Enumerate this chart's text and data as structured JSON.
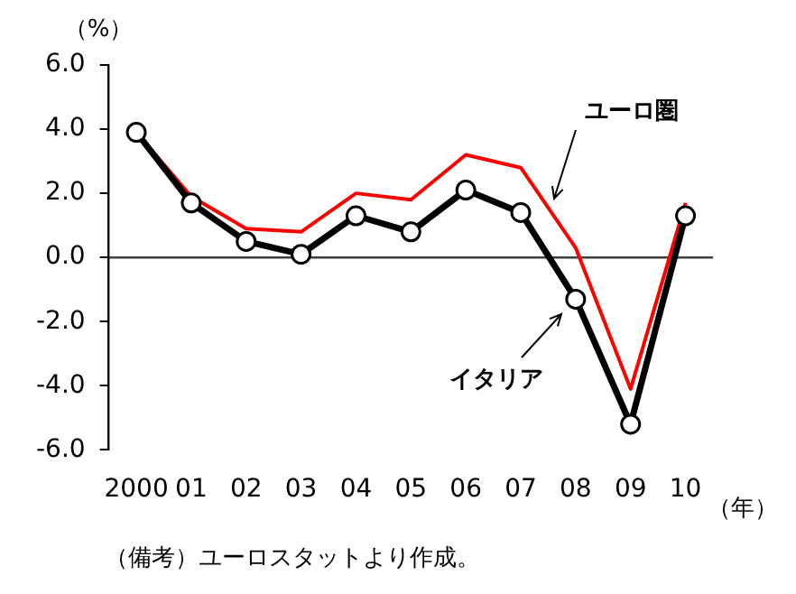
{
  "chart_data": {
    "type": "line",
    "ylabel": "（%）",
    "xlabel": "（年）",
    "categories": [
      "2000",
      "01",
      "02",
      "03",
      "04",
      "05",
      "06",
      "07",
      "08",
      "09",
      "10"
    ],
    "series": [
      {
        "name": "ユーロ圏",
        "color": "#ff0000",
        "values": [
          3.9,
          1.9,
          0.9,
          0.8,
          2.0,
          1.8,
          3.2,
          2.8,
          0.3,
          -4.1,
          1.7
        ],
        "marker": "none"
      },
      {
        "name": "イタリア",
        "color": "#000000",
        "values": [
          3.9,
          1.7,
          0.5,
          0.1,
          1.3,
          0.8,
          2.1,
          1.4,
          -1.3,
          -5.2,
          1.3
        ],
        "marker": "circle"
      }
    ],
    "ylim": [
      -6,
      6
    ],
    "yticks": [
      {
        "value": 6,
        "label": "6.0"
      },
      {
        "value": 4,
        "label": "4.0"
      },
      {
        "value": 2,
        "label": "2.0"
      },
      {
        "value": 0,
        "label": "0.0"
      },
      {
        "value": -2,
        "label": "-2.0"
      },
      {
        "value": -4,
        "label": "-4.0"
      },
      {
        "value": -6,
        "label": "-6.0"
      }
    ],
    "ref_lines": [
      {
        "axis": "y",
        "value": 0,
        "color": "#404040"
      }
    ],
    "grid": false,
    "annotations": [
      "（備考）ユーロスタットより作成。"
    ]
  }
}
